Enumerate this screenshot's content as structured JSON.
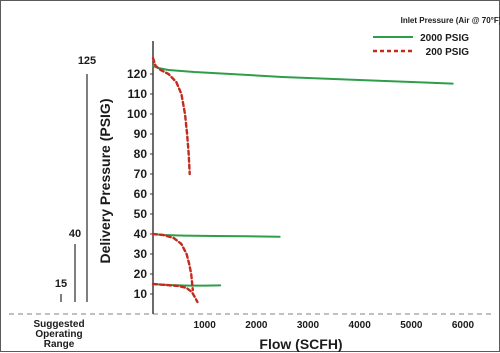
{
  "chart_data": {
    "type": "line",
    "xlabel": "Flow (SCFH)",
    "ylabel": "Delivery Pressure (PSIG)",
    "xlim": [
      0,
      6000
    ],
    "ylim": [
      0,
      130
    ],
    "x_ticks": [
      "1000",
      "2000",
      "3000",
      "4000",
      "5000",
      "6000"
    ],
    "y_ticks": [
      "10",
      "20",
      "30",
      "40",
      "50",
      "60",
      "70",
      "80",
      "90",
      "100",
      "110",
      "120"
    ],
    "legend_title": "Inlet Pressure (Air @ 70°F)",
    "legend_position": "top-right",
    "grid": false,
    "series": [
      {
        "name": "2000 PSIG",
        "color": "#2e9e4a",
        "style": "solid",
        "curves": [
          [
            [
              0,
              124
            ],
            [
              100,
              123
            ],
            [
              300,
              122
            ],
            [
              800,
              121
            ],
            [
              1500,
              120
            ],
            [
              2500,
              118.5
            ],
            [
              3500,
              117.5
            ],
            [
              4500,
              116.5
            ],
            [
              5500,
              115.5
            ],
            [
              5800,
              115.2
            ]
          ],
          [
            [
              0,
              40
            ],
            [
              200,
              39.5
            ],
            [
              600,
              39.2
            ],
            [
              1200,
              39
            ],
            [
              1800,
              38.9
            ],
            [
              2450,
              38.6
            ]
          ],
          [
            [
              0,
              15
            ],
            [
              300,
              14.5
            ],
            [
              700,
              14.2
            ],
            [
              1000,
              14.2
            ],
            [
              1300,
              14.3
            ]
          ]
        ]
      },
      {
        "name": "200 PSIG",
        "color": "#c42a1e",
        "style": "dashed",
        "curves": [
          [
            [
              0,
              128
            ],
            [
              50,
              124
            ],
            [
              150,
              122
            ],
            [
              300,
              120
            ],
            [
              450,
              116
            ],
            [
              550,
              110
            ],
            [
              620,
              100
            ],
            [
              660,
              90
            ],
            [
              690,
              80
            ],
            [
              710,
              70
            ]
          ],
          [
            [
              0,
              40
            ],
            [
              200,
              39.5
            ],
            [
              400,
              38
            ],
            [
              550,
              35
            ],
            [
              650,
              30
            ],
            [
              700,
              25
            ],
            [
              740,
              20
            ],
            [
              770,
              12
            ]
          ],
          [
            [
              0,
              15
            ],
            [
              250,
              14.5
            ],
            [
              500,
              14
            ],
            [
              650,
              13
            ],
            [
              750,
              11
            ],
            [
              820,
              8
            ],
            [
              860,
              6
            ]
          ]
        ]
      }
    ]
  },
  "suggested_range": {
    "caption": [
      "Suggested",
      "Operating",
      "Range"
    ],
    "labels": [
      {
        "text": "125",
        "value": 125
      },
      {
        "text": "40",
        "value": 40
      },
      {
        "text": "15",
        "value": 15
      }
    ]
  }
}
